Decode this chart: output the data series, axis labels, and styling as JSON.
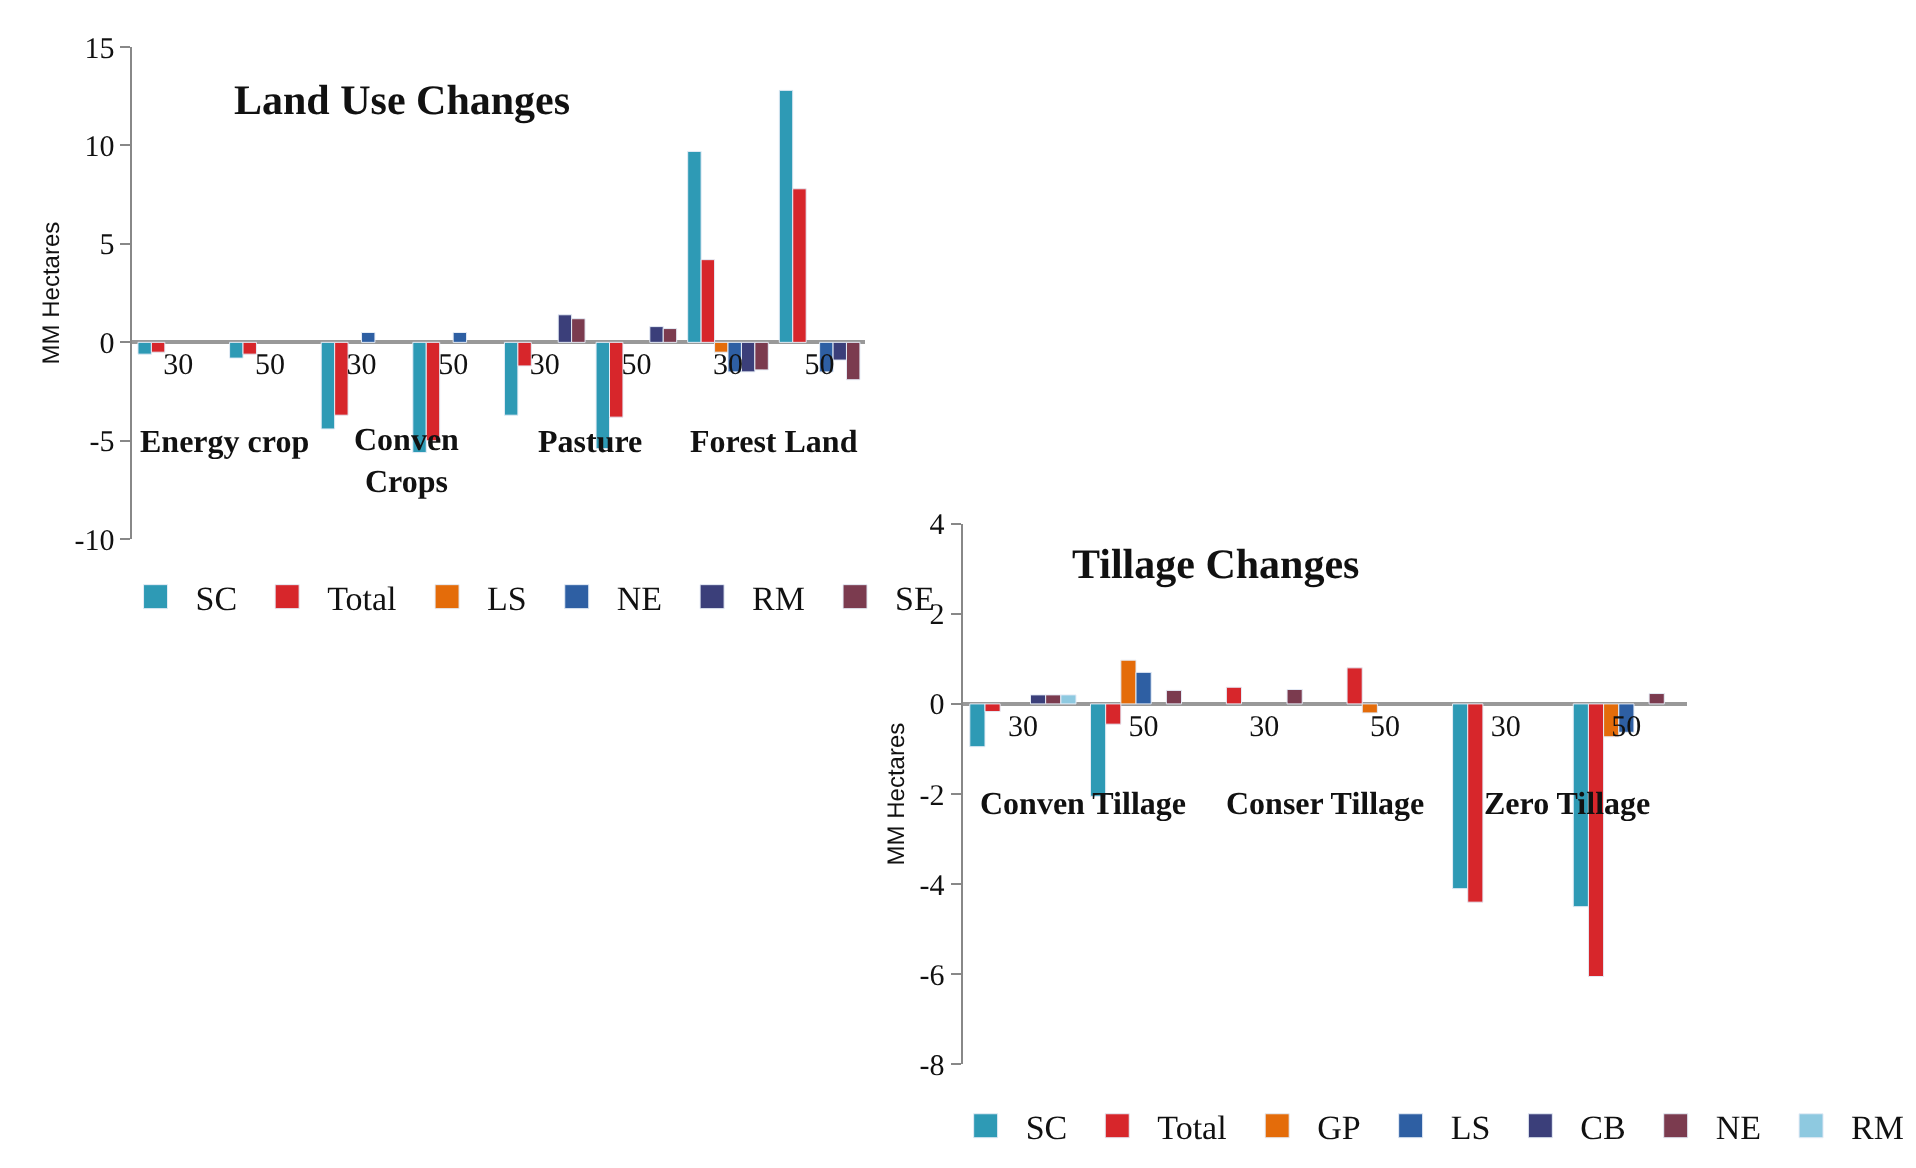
{
  "chart_data": [
    {
      "type": "bar",
      "title": "Land Use Changes",
      "ylabel": "MM Hectares",
      "categories": [
        "30",
        "50",
        "30",
        "50",
        "30",
        "50",
        "30",
        "50"
      ],
      "annotations": [
        "Energy crop",
        "Conven Crops",
        "Pasture",
        "Forest Land"
      ],
      "ylim": [
        -10,
        15
      ],
      "yticks": [
        -10,
        -5,
        0,
        5,
        10,
        15
      ],
      "legend": "bottom",
      "series": [
        {
          "name": "SC",
          "color": "#2e9ab5",
          "values": [
            -0.6,
            -0.8,
            -4.4,
            -5.6,
            -3.7,
            -5.4,
            9.7,
            12.8
          ]
        },
        {
          "name": "Total",
          "color": "#d7262b",
          "values": [
            -0.5,
            -0.6,
            -3.7,
            -5.0,
            -1.2,
            -3.8,
            4.2,
            7.8
          ]
        },
        {
          "name": "LS",
          "color": "#e46c0a",
          "values": [
            null,
            null,
            null,
            null,
            null,
            null,
            -0.5,
            null
          ]
        },
        {
          "name": "NE",
          "color": "#2e5fa3",
          "values": [
            null,
            null,
            0.5,
            0.5,
            null,
            null,
            -1.5,
            -1.5
          ]
        },
        {
          "name": "RM",
          "color": "#3b3f7a",
          "values": [
            null,
            null,
            null,
            null,
            1.4,
            0.8,
            -1.5,
            -0.9
          ]
        },
        {
          "name": "SE",
          "color": "#7b3b4f",
          "values": [
            null,
            null,
            null,
            null,
            1.2,
            0.7,
            -1.4,
            -1.9
          ]
        }
      ]
    },
    {
      "type": "bar",
      "title": "Tillage Changes",
      "ylabel": "MM Hectares",
      "categories": [
        "30",
        "50",
        "30",
        "50",
        "30",
        "50"
      ],
      "annotations": [
        "Conven Tillage",
        "Conser Tillage",
        "Zero Tillage"
      ],
      "ylim": [
        -8,
        4
      ],
      "yticks": [
        -8,
        -6,
        -4,
        -2,
        0,
        2,
        4
      ],
      "legend": "bottom",
      "series": [
        {
          "name": "SC",
          "color": "#2e9ab5",
          "values": [
            -0.95,
            -2.05,
            null,
            null,
            -4.1,
            -4.5
          ]
        },
        {
          "name": "Total",
          "color": "#d7262b",
          "values": [
            -0.17,
            -0.45,
            0.37,
            0.8,
            -4.4,
            -6.05
          ]
        },
        {
          "name": "GP",
          "color": "#e46c0a",
          "values": [
            null,
            0.97,
            null,
            -0.2,
            null,
            -0.73
          ]
        },
        {
          "name": "LS",
          "color": "#2e5fa3",
          "values": [
            null,
            0.7,
            null,
            null,
            null,
            -0.63
          ]
        },
        {
          "name": "CB",
          "color": "#3b3f7a",
          "values": [
            0.2,
            null,
            null,
            null,
            null,
            null
          ]
        },
        {
          "name": "NE",
          "color": "#7b3b4f",
          "values": [
            0.2,
            0.3,
            0.32,
            null,
            null,
            0.23
          ]
        },
        {
          "name": "RM",
          "color": "#8ec9e0",
          "values": [
            0.2,
            null,
            null,
            null,
            null,
            null
          ]
        }
      ]
    }
  ]
}
